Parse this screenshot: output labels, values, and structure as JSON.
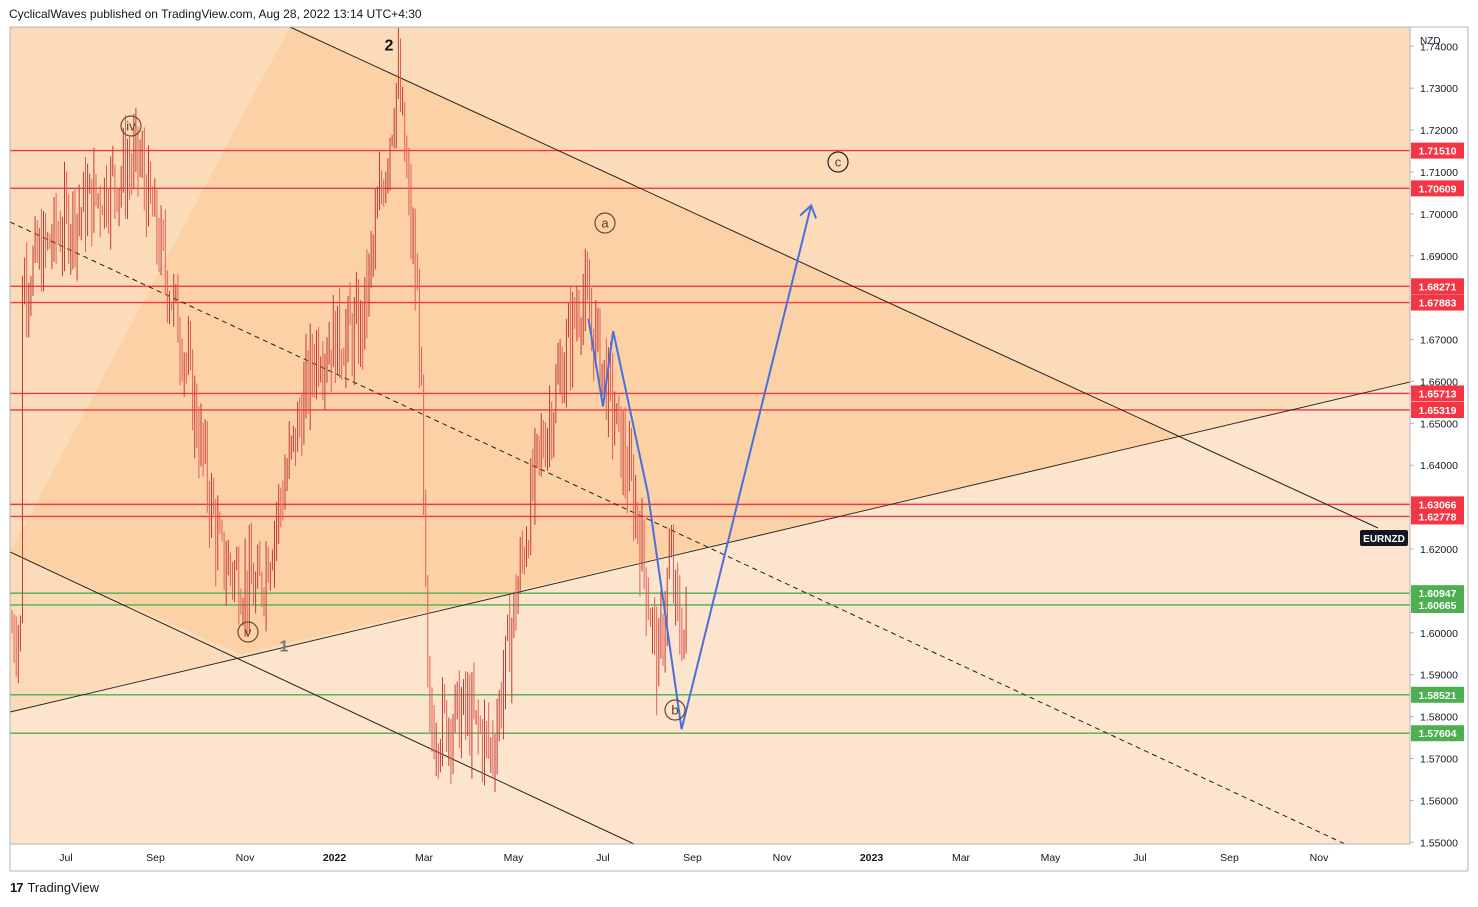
{
  "header": {
    "published_text": "CyclicalWaves published on TradingView.com, Aug 28, 2022 13:14 UTC+4:30"
  },
  "footer": {
    "logo_glyph": "17",
    "brand": "TradingView"
  },
  "chart_data": {
    "type": "candlestick",
    "symbol": "EURNZD",
    "currency": "NZD",
    "y_ticks": [
      "1.74000",
      "1.73000",
      "1.72000",
      "1.71000",
      "1.70000",
      "1.69000",
      "1.68000",
      "1.67000",
      "1.66000",
      "1.65000",
      "1.64000",
      "1.63000",
      "1.62000",
      "1.61000",
      "1.60000",
      "1.59000",
      "1.58000",
      "1.57000",
      "1.56000",
      "1.55000"
    ],
    "x_ticks": [
      "Jul",
      "Sep",
      "Nov",
      "2022",
      "Mar",
      "May",
      "Jul",
      "Sep",
      "Nov",
      "2023",
      "Mar",
      "May",
      "Jul",
      "Sep",
      "Nov"
    ],
    "ylim": [
      1.5496,
      1.7446
    ],
    "last_price_label": "EURNZD",
    "levels_red": [
      "1.71510",
      "1.70609",
      "1.68271",
      "1.67883",
      "1.65713",
      "1.65319",
      "1.63066",
      "1.62778"
    ],
    "levels_green": [
      "1.60947",
      "1.60665",
      "1.58521",
      "1.57604"
    ],
    "wave_labels": [
      "2",
      "iv",
      "v",
      "1",
      "a",
      "b",
      "c"
    ],
    "price_path_anchors": [
      {
        "date": "2021-06",
        "close": 1.684
      },
      {
        "date": "2021-07",
        "close": 1.698
      },
      {
        "date": "2021-08-20",
        "close": 1.713
      },
      {
        "date": "2021-09-20",
        "close": 1.668
      },
      {
        "date": "2021-10-15",
        "close": 1.618
      },
      {
        "date": "2021-11-10",
        "close": 1.609
      },
      {
        "date": "2021-12-20",
        "close": 1.668
      },
      {
        "date": "2022-01-20",
        "close": 1.672
      },
      {
        "date": "2022-02-14",
        "close": 1.733
      },
      {
        "date": "2022-03-01",
        "close": 1.672
      },
      {
        "date": "2022-03-07",
        "close": 1.577
      },
      {
        "date": "2022-04-01",
        "close": 1.581
      },
      {
        "date": "2022-04-20",
        "close": 1.572
      },
      {
        "date": "2022-05-20",
        "close": 1.639
      },
      {
        "date": "2022-06-20",
        "close": 1.681
      },
      {
        "date": "2022-07-01",
        "close": 1.669
      },
      {
        "date": "2022-07-28",
        "close": 1.629
      },
      {
        "date": "2022-08-12",
        "close": 1.591
      },
      {
        "date": "2022-08-20",
        "close": 1.618
      },
      {
        "date": "2022-08-26",
        "close": 1.601
      }
    ],
    "projection_path": [
      {
        "date": "2022-06-25",
        "price": 1.675
      },
      {
        "date": "2022-07-05",
        "price": 1.654
      },
      {
        "date": "2022-07-12",
        "price": 1.672
      },
      {
        "date": "2022-08-05",
        "price": 1.633
      },
      {
        "date": "2022-08-28",
        "price": 1.577
      },
      {
        "date": "2022-11-25",
        "price": 1.702
      }
    ],
    "colors": {
      "background": "#fcdcb8",
      "channel_fill": "#f9c896",
      "lower_fill": "#fde4cc",
      "up_candle": "#bf3c36",
      "down_candle": "#e45e55",
      "resistance": "#f23645",
      "support": "#4caf50",
      "projection": "#4a70dd",
      "trendline": "#222222"
    }
  }
}
